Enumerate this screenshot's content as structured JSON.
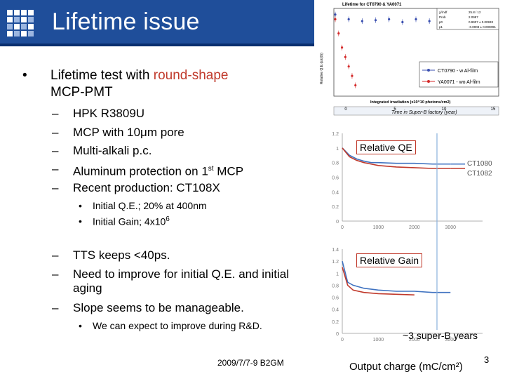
{
  "header": {
    "title": "Lifetime issue"
  },
  "main": {
    "bullet": {
      "text_a": "Lifetime test with ",
      "text_red": "round-shape",
      "text_b": "MCP-PMT"
    },
    "items": [
      {
        "text": "HPK R3809U"
      },
      {
        "text": "MCP with 10μm pore"
      },
      {
        "text": "Multi-alkali p.c."
      },
      {
        "text_a": "Aluminum protection on 1",
        "sup": "st",
        "text_b": " MCP"
      },
      {
        "text": "Recent production: CT108X"
      }
    ],
    "subitems1": [
      {
        "text": "Initial Q.E.; 20% at 400nm"
      },
      {
        "text_a": "Initial Gain; 4x10",
        "sup": "6"
      }
    ],
    "items2": [
      {
        "text": "TTS keeps <40ps."
      },
      {
        "text": "Need to improve for initial Q.E. and initial aging"
      },
      {
        "text": "Slope seems to be manageable."
      }
    ],
    "subitems2": [
      {
        "text": "We can expect to improve during R&D."
      }
    ]
  },
  "footer": {
    "date": "2009/7/7-9 B2GM",
    "page": "3"
  },
  "chart_data": [
    {
      "type": "scatter",
      "title": "Lifetime for CT0790 & YA0071",
      "ylabel": "Relative Q.E.(ε/ε(0))",
      "xlabel": "Integrated irradiation (x10^10 photons/cm2)",
      "x2label": "Time in Super-B factory (year)",
      "x2_ticks": [
        "0",
        "5",
        "10",
        "15"
      ],
      "series": [
        {
          "name": "CT0790 - w Al-film",
          "color": "#3a4fb0",
          "x": [
            0,
            20,
            40,
            60,
            80,
            100,
            120,
            140,
            160,
            180,
            200,
            220
          ],
          "y": [
            1.05,
            1.0,
            0.98,
            0.99,
            1.0,
            0.97,
            1.0,
            0.98,
            0.99,
            0.98,
            1.0,
            0.99
          ]
        },
        {
          "name": "YA0071 - wo Al-film",
          "color": "#d42a2a",
          "x": [
            0,
            5,
            10,
            15,
            20,
            25,
            30
          ],
          "y": [
            1.0,
            0.85,
            0.7,
            0.6,
            0.5,
            0.4,
            0.3
          ]
        }
      ],
      "fit_table": {
        "rows": [
          [
            "χ²/ndf",
            "25.8 / 12"
          ],
          [
            "Prob",
            "2.0987"
          ],
          [
            "p0",
            "0.9907 ± 0.00933"
          ],
          [
            "p1",
            "-0.0003 ± 0.000091"
          ]
        ]
      }
    },
    {
      "type": "line",
      "title": "Relative QE",
      "x_ticks": [
        "0",
        "1000",
        "2000",
        "3000"
      ],
      "y_ticks": [
        "0",
        "0.2",
        "0.4",
        "0.6",
        "0.8",
        "1",
        "1.2"
      ],
      "xlim": [
        0,
        3500
      ],
      "ylim": [
        0,
        1.2
      ],
      "series": [
        {
          "name": "CT1080",
          "color": "#3f72c0",
          "x": [
            0,
            200,
            400,
            600,
            800,
            1000,
            1500,
            2000,
            2500,
            3000
          ],
          "y": [
            1.0,
            0.9,
            0.85,
            0.82,
            0.8,
            0.8,
            0.79,
            0.79,
            0.78,
            0.78
          ]
        },
        {
          "name": "CT1082",
          "color": "#c0392b",
          "x": [
            0,
            200,
            400,
            600,
            800,
            1000,
            1500,
            2000,
            2500,
            3000
          ],
          "y": [
            1.0,
            0.88,
            0.83,
            0.8,
            0.78,
            0.76,
            0.74,
            0.73,
            0.72,
            0.72
          ]
        }
      ]
    },
    {
      "type": "line",
      "title": "Relative Gain",
      "xlabel": "Output charge (mC/cm²)",
      "x_ticks": [
        "0",
        "1000",
        "2000",
        "3000"
      ],
      "y_ticks": [
        "0",
        "0.2",
        "0.4",
        "0.6",
        "0.8",
        "1",
        "1.2",
        "1.4"
      ],
      "xlim": [
        0,
        3500
      ],
      "ylim": [
        0,
        1.4
      ],
      "series": [
        {
          "name": "CT1080",
          "color": "#3f72c0",
          "x": [
            0,
            150,
            300,
            600,
            1000,
            1500,
            2000,
            2500,
            3000
          ],
          "y": [
            1.2,
            0.85,
            0.8,
            0.75,
            0.72,
            0.7,
            0.7,
            0.68,
            0.68
          ]
        },
        {
          "name": "CT1082",
          "color": "#c0392b",
          "x": [
            0,
            150,
            300,
            600,
            1000,
            1500,
            2000
          ],
          "y": [
            1.1,
            0.8,
            0.72,
            0.68,
            0.66,
            0.65,
            0.64
          ]
        }
      ],
      "annotation": "~3 super-B years",
      "marker_x": 2700
    }
  ]
}
